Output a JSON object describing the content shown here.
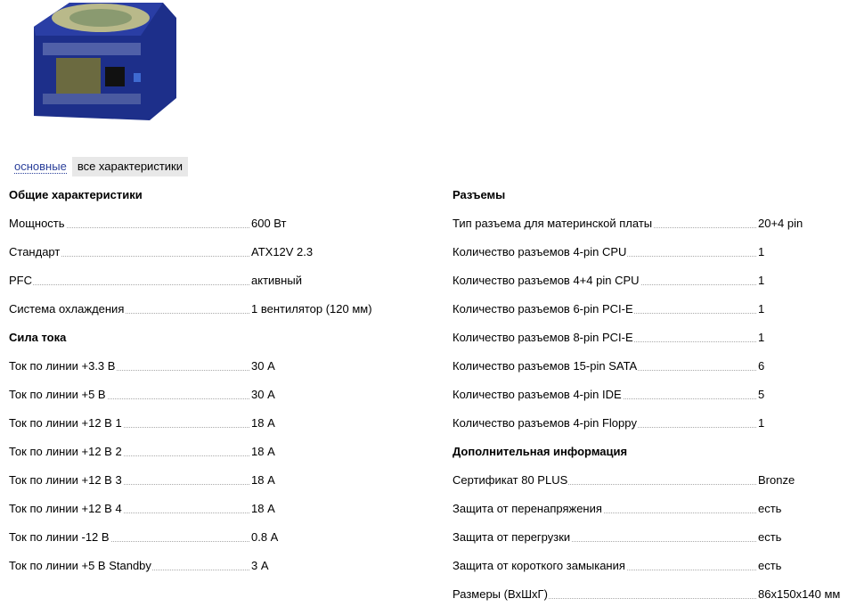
{
  "tabs": {
    "basic": "основные",
    "all": "все характеристики"
  },
  "left": [
    {
      "heading": "Общие характеристики",
      "rows": [
        [
          "Мощность",
          "600 Вт"
        ],
        [
          "Стандарт",
          "ATX12V 2.3"
        ],
        [
          "PFC",
          "активный"
        ],
        [
          "Система охлаждения",
          "1 вентилятор (120 мм)"
        ]
      ]
    },
    {
      "heading": "Сила тока",
      "rows": [
        [
          "Ток по линии +3.3 В",
          "30 А"
        ],
        [
          "Ток по линии +5 В",
          "30 А"
        ],
        [
          "Ток по линии +12 В 1",
          "18 А"
        ],
        [
          "Ток по линии +12 В 2",
          "18 А"
        ],
        [
          "Ток по линии +12 В 3",
          "18 А"
        ],
        [
          "Ток по линии +12 В 4",
          "18 А"
        ],
        [
          "Ток по линии -12 В",
          "0.8 А"
        ],
        [
          "Ток по линии +5 В Standby",
          "3 А"
        ]
      ]
    }
  ],
  "right": [
    {
      "heading": "Разъемы",
      "rows": [
        [
          "Тип разъема для материнской платы",
          "20+4 pin"
        ],
        [
          "Количество разъемов 4-pin CPU",
          "1"
        ],
        [
          "Количество разъемов 4+4 pin CPU",
          "1"
        ],
        [
          "Количество разъемов 6-pin PCI-E",
          "1"
        ],
        [
          "Количество разъемов 8-pin PCI-E",
          "1"
        ],
        [
          "Количество разъемов 15-pin SATA",
          "6"
        ],
        [
          "Количество разъемов 4-pin IDE",
          "5"
        ],
        [
          "Количество разъемов 4-pin Floppy",
          "1"
        ]
      ]
    },
    {
      "heading": "Дополнительная информация",
      "rows": [
        [
          "Сертификат 80 PLUS",
          "Bronze"
        ],
        [
          "Защита от перенапряжения",
          "есть"
        ],
        [
          "Защита от перегрузки",
          "есть"
        ],
        [
          "Защита от короткого замыкания",
          "есть"
        ],
        [
          "Размеры (ВxШxГ)",
          "86x150x140 мм"
        ]
      ]
    }
  ]
}
